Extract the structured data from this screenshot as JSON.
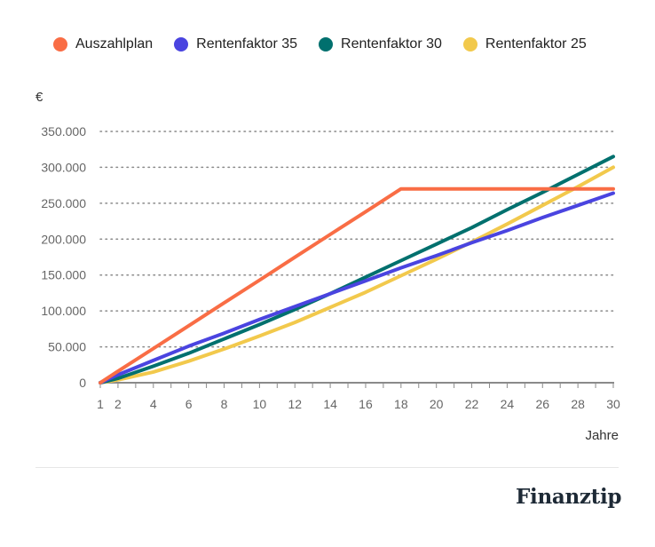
{
  "chart_data": {
    "type": "line",
    "title": "",
    "ylabel": "€",
    "xlabel": "Jahre",
    "xlim": [
      1,
      30
    ],
    "ylim": [
      0,
      350000
    ],
    "x_ticks": [
      1,
      2,
      4,
      6,
      8,
      10,
      12,
      14,
      16,
      18,
      20,
      22,
      24,
      26,
      28,
      30
    ],
    "y_ticks": [
      0,
      50000,
      100000,
      150000,
      200000,
      250000,
      300000,
      350000
    ],
    "y_tick_labels": [
      "0",
      "50.000",
      "100.000",
      "150.000",
      "200.000",
      "250.000",
      "300.000",
      "350.000"
    ],
    "grid": "horizontal dotted",
    "legend_position": "top",
    "x": [
      1,
      2,
      4,
      6,
      8,
      10,
      12,
      14,
      16,
      18,
      20,
      22,
      24,
      26,
      28,
      30
    ],
    "series": [
      {
        "name": "Auszahlplan",
        "color": "#f96d45",
        "values": [
          0,
          15900,
          47600,
          79400,
          111200,
          142900,
          174700,
          206500,
          238200,
          270000,
          270000,
          270000,
          270000,
          270000,
          270000,
          270000
        ]
      },
      {
        "name": "Rentenfaktor 35",
        "color": "#4a44e0",
        "values": [
          0,
          11000,
          31000,
          51000,
          69000,
          88000,
          106000,
          124000,
          142000,
          160000,
          177000,
          195000,
          212000,
          230000,
          247000,
          264000
        ]
      },
      {
        "name": "Rentenfaktor 30",
        "color": "#00706e",
        "values": [
          0,
          6000,
          23000,
          41000,
          61000,
          81000,
          102000,
          124000,
          147000,
          170000,
          193000,
          216000,
          241000,
          265000,
          290000,
          315000
        ]
      },
      {
        "name": "Rentenfaktor 25",
        "color": "#f2c94c",
        "values": [
          0,
          4000,
          15000,
          30000,
          47000,
          65000,
          84000,
          105000,
          126000,
          149000,
          172000,
          196000,
          221000,
          247000,
          273000,
          300000
        ]
      }
    ]
  },
  "brand": "Finanztip"
}
